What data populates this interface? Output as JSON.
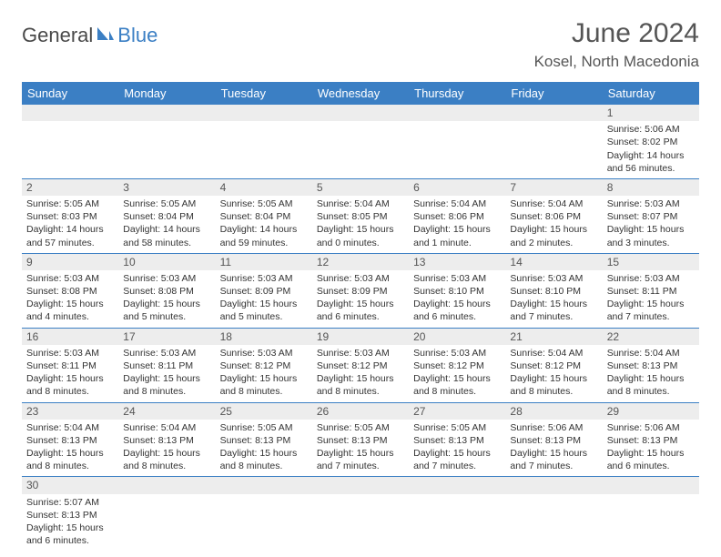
{
  "logo": {
    "text1": "General",
    "text2": "Blue"
  },
  "title": "June 2024",
  "location": "Kosel, North Macedonia",
  "colors": {
    "header_bg": "#3b7fc4",
    "header_fg": "#ffffff",
    "grid_line": "#3b7fc4",
    "daynum_bg": "#ededed"
  },
  "days": [
    "Sunday",
    "Monday",
    "Tuesday",
    "Wednesday",
    "Thursday",
    "Friday",
    "Saturday"
  ],
  "weeks": [
    [
      null,
      null,
      null,
      null,
      null,
      null,
      {
        "n": "1",
        "sr": "5:06 AM",
        "ss": "8:02 PM",
        "dl": "14 hours and 56 minutes."
      }
    ],
    [
      {
        "n": "2",
        "sr": "5:05 AM",
        "ss": "8:03 PM",
        "dl": "14 hours and 57 minutes."
      },
      {
        "n": "3",
        "sr": "5:05 AM",
        "ss": "8:04 PM",
        "dl": "14 hours and 58 minutes."
      },
      {
        "n": "4",
        "sr": "5:05 AM",
        "ss": "8:04 PM",
        "dl": "14 hours and 59 minutes."
      },
      {
        "n": "5",
        "sr": "5:04 AM",
        "ss": "8:05 PM",
        "dl": "15 hours and 0 minutes."
      },
      {
        "n": "6",
        "sr": "5:04 AM",
        "ss": "8:06 PM",
        "dl": "15 hours and 1 minute."
      },
      {
        "n": "7",
        "sr": "5:04 AM",
        "ss": "8:06 PM",
        "dl": "15 hours and 2 minutes."
      },
      {
        "n": "8",
        "sr": "5:03 AM",
        "ss": "8:07 PM",
        "dl": "15 hours and 3 minutes."
      }
    ],
    [
      {
        "n": "9",
        "sr": "5:03 AM",
        "ss": "8:08 PM",
        "dl": "15 hours and 4 minutes."
      },
      {
        "n": "10",
        "sr": "5:03 AM",
        "ss": "8:08 PM",
        "dl": "15 hours and 5 minutes."
      },
      {
        "n": "11",
        "sr": "5:03 AM",
        "ss": "8:09 PM",
        "dl": "15 hours and 5 minutes."
      },
      {
        "n": "12",
        "sr": "5:03 AM",
        "ss": "8:09 PM",
        "dl": "15 hours and 6 minutes."
      },
      {
        "n": "13",
        "sr": "5:03 AM",
        "ss": "8:10 PM",
        "dl": "15 hours and 6 minutes."
      },
      {
        "n": "14",
        "sr": "5:03 AM",
        "ss": "8:10 PM",
        "dl": "15 hours and 7 minutes."
      },
      {
        "n": "15",
        "sr": "5:03 AM",
        "ss": "8:11 PM",
        "dl": "15 hours and 7 minutes."
      }
    ],
    [
      {
        "n": "16",
        "sr": "5:03 AM",
        "ss": "8:11 PM",
        "dl": "15 hours and 8 minutes."
      },
      {
        "n": "17",
        "sr": "5:03 AM",
        "ss": "8:11 PM",
        "dl": "15 hours and 8 minutes."
      },
      {
        "n": "18",
        "sr": "5:03 AM",
        "ss": "8:12 PM",
        "dl": "15 hours and 8 minutes."
      },
      {
        "n": "19",
        "sr": "5:03 AM",
        "ss": "8:12 PM",
        "dl": "15 hours and 8 minutes."
      },
      {
        "n": "20",
        "sr": "5:03 AM",
        "ss": "8:12 PM",
        "dl": "15 hours and 8 minutes."
      },
      {
        "n": "21",
        "sr": "5:04 AM",
        "ss": "8:12 PM",
        "dl": "15 hours and 8 minutes."
      },
      {
        "n": "22",
        "sr": "5:04 AM",
        "ss": "8:13 PM",
        "dl": "15 hours and 8 minutes."
      }
    ],
    [
      {
        "n": "23",
        "sr": "5:04 AM",
        "ss": "8:13 PM",
        "dl": "15 hours and 8 minutes."
      },
      {
        "n": "24",
        "sr": "5:04 AM",
        "ss": "8:13 PM",
        "dl": "15 hours and 8 minutes."
      },
      {
        "n": "25",
        "sr": "5:05 AM",
        "ss": "8:13 PM",
        "dl": "15 hours and 8 minutes."
      },
      {
        "n": "26",
        "sr": "5:05 AM",
        "ss": "8:13 PM",
        "dl": "15 hours and 7 minutes."
      },
      {
        "n": "27",
        "sr": "5:05 AM",
        "ss": "8:13 PM",
        "dl": "15 hours and 7 minutes."
      },
      {
        "n": "28",
        "sr": "5:06 AM",
        "ss": "8:13 PM",
        "dl": "15 hours and 7 minutes."
      },
      {
        "n": "29",
        "sr": "5:06 AM",
        "ss": "8:13 PM",
        "dl": "15 hours and 6 minutes."
      }
    ],
    [
      {
        "n": "30",
        "sr": "5:07 AM",
        "ss": "8:13 PM",
        "dl": "15 hours and 6 minutes."
      },
      null,
      null,
      null,
      null,
      null,
      null
    ]
  ],
  "labels": {
    "sunrise": "Sunrise:",
    "sunset": "Sunset:",
    "daylight": "Daylight:"
  }
}
